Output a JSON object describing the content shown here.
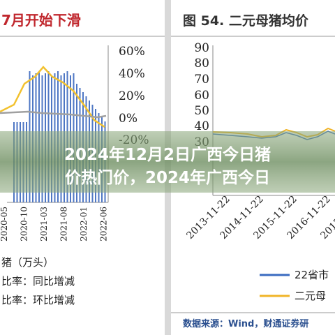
{
  "left_panel": {
    "title": "7月开始下滑",
    "right_axis_ticks": [
      "60%",
      "40%",
      "20%",
      "0%",
      "-20%"
    ],
    "x_labels": [
      "2020-05",
      "2020-10",
      "2021-03",
      "2021-08",
      "2022-01",
      "2022-06"
    ],
    "legend": [
      "猪（万头）",
      "比率：同比增减",
      "比率：环比增减"
    ]
  },
  "right_panel": {
    "title": "图 54. 二元母猪均价",
    "y_ticks": [
      "90",
      "80",
      "70",
      "60",
      "50",
      "40",
      "30"
    ],
    "x_labels": [
      "2013-11-22",
      "2014-11-22",
      "2015-11-22",
      "2016-11-22",
      "2017-11-22"
    ],
    "legend": [
      "22省市",
      "二元母"
    ],
    "source": "数据来源：Wind，财通证券研"
  },
  "overlay": {
    "lines": [
      "2024年12月2日广西今日猪",
      "价热门价，2024年广西今日"
    ]
  }
}
